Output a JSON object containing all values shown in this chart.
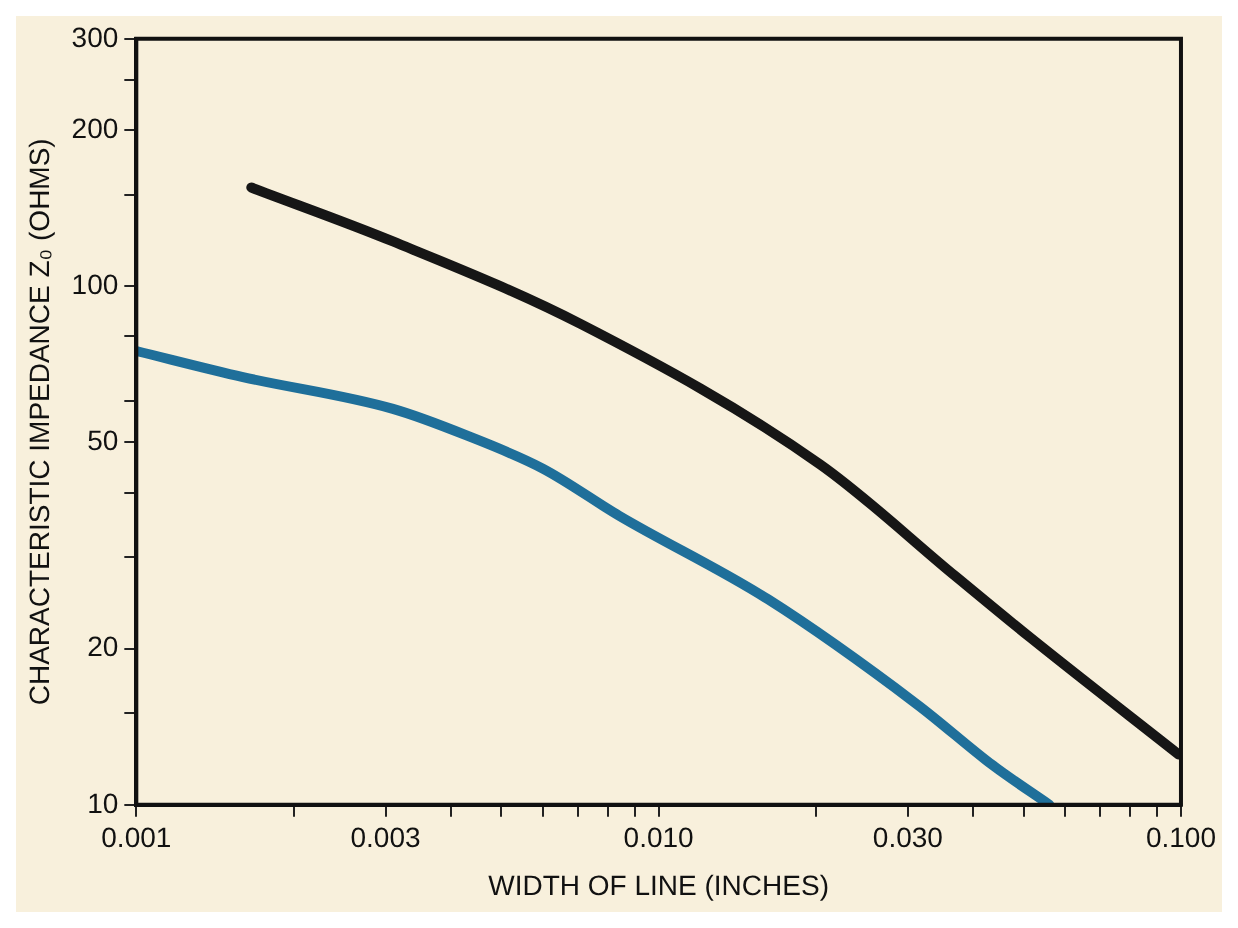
{
  "chart_data": {
    "type": "line",
    "xlabel": "WIDTH OF LINE (INCHES)",
    "ylabel": "CHARACTERISTIC IMPEDANCE Z₀ (OHMS)",
    "log": "xy",
    "grid": false,
    "legend": false,
    "marker": "none",
    "line_style": "solid",
    "xlim": [
      0.001,
      0.1
    ],
    "ylim": [
      10,
      300
    ],
    "xticks": [
      {
        "value": 0.001,
        "label": "0.001"
      },
      {
        "value": 0.002,
        "label": null
      },
      {
        "value": 0.003,
        "label": "0.003"
      },
      {
        "value": 0.004,
        "label": null
      },
      {
        "value": 0.005,
        "label": null
      },
      {
        "value": 0.006,
        "label": null
      },
      {
        "value": 0.007,
        "label": null
      },
      {
        "value": 0.008,
        "label": null
      },
      {
        "value": 0.009,
        "label": null
      },
      {
        "value": 0.01,
        "label": "0.010"
      },
      {
        "value": 0.02,
        "label": null
      },
      {
        "value": 0.03,
        "label": "0.030"
      },
      {
        "value": 0.04,
        "label": null
      },
      {
        "value": 0.05,
        "label": null
      },
      {
        "value": 0.06,
        "label": null
      },
      {
        "value": 0.07,
        "label": null
      },
      {
        "value": 0.08,
        "label": null
      },
      {
        "value": 0.09,
        "label": null
      },
      {
        "value": 0.1,
        "label": "0.100"
      }
    ],
    "yticks": [
      10,
      {
        "value": 15,
        "label": null
      },
      20,
      {
        "value": 30,
        "label": null
      },
      {
        "value": 40,
        "label": null
      },
      50,
      {
        "value": 60,
        "label": null
      },
      {
        "value": 80,
        "label": null
      },
      100,
      {
        "value": 150,
        "label": null
      },
      200,
      {
        "value": 250,
        "label": null
      },
      300
    ],
    "series": [
      {
        "color": "#161616",
        "x": [
          0.00166,
          0.0031,
          0.0071,
          0.0204,
          0.037,
          0.0515,
          0.099
        ],
        "values": [
          155,
          122,
          84.5,
          45.3,
          27.6,
          21,
          12.5
        ]
      },
      {
        "color": "#1f6f9a",
        "x": [
          0.001,
          0.0016,
          0.0031,
          0.0043,
          0.006,
          0.0084,
          0.0162,
          0.0313,
          0.0437,
          0.056
        ],
        "values": [
          75,
          66.8,
          58,
          51.5,
          44.5,
          36.1,
          24.9,
          15.6,
          11.9,
          10
        ]
      }
    ]
  }
}
